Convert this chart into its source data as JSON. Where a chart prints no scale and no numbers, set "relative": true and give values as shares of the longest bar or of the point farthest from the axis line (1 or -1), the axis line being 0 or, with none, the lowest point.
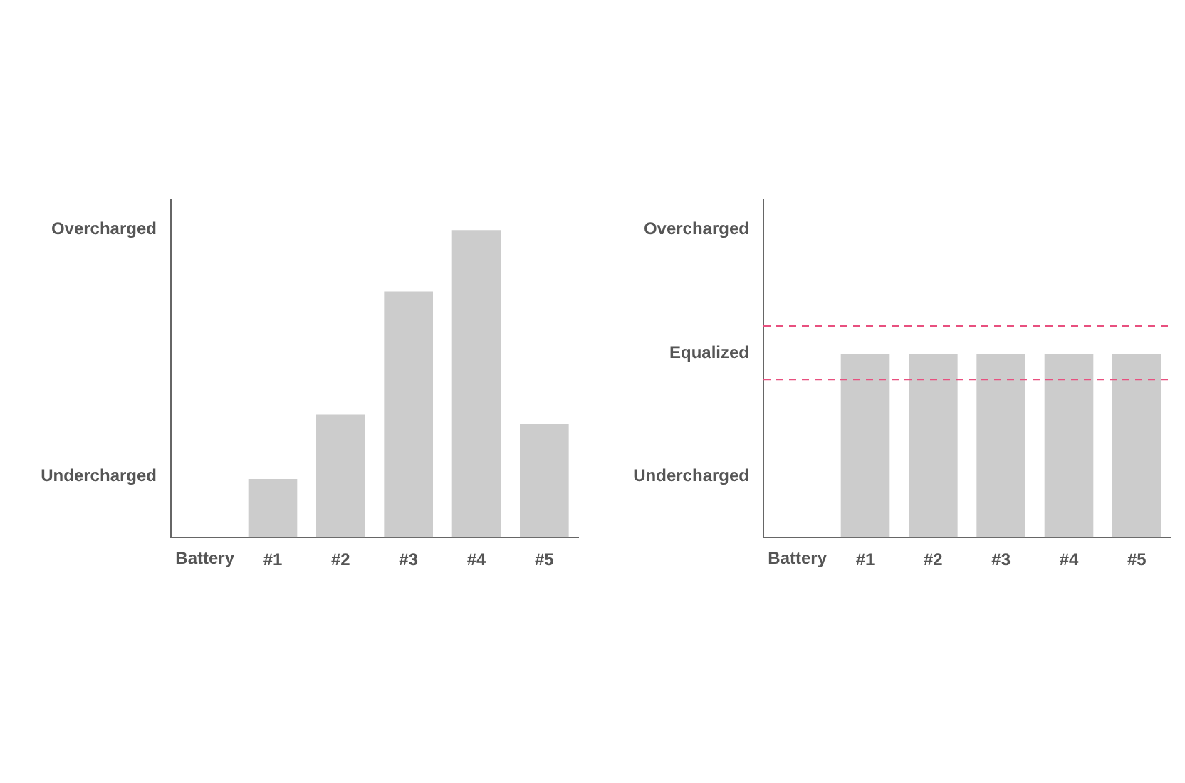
{
  "chart_data": [
    {
      "type": "bar",
      "relative": true,
      "xlabel": "Battery",
      "categories": [
        "#1",
        "#2",
        "#3",
        "#4",
        "#5"
      ],
      "values": [
        0.19,
        0.4,
        0.8,
        1,
        0.37
      ],
      "color": "#cccccc",
      "annotations": [
        "Overcharged",
        "Undercharged"
      ],
      "grid": false,
      "legend": false
    },
    {
      "type": "bar",
      "relative": true,
      "xlabel": "Battery",
      "categories": [
        "#1",
        "#2",
        "#3",
        "#4",
        "#5"
      ],
      "values": [
        1,
        1,
        1,
        1,
        1
      ],
      "color": "#cccccc",
      "annotations": [
        "Overcharged",
        "Equalized",
        "Undercharged"
      ],
      "grid": false,
      "legend": false,
      "ref_lines": [
        {
          "axis": "y",
          "value": 1.15,
          "color": "#e8507f",
          "line_style": "dashed"
        },
        {
          "axis": "y",
          "value": 0.86,
          "color": "#e8507f",
          "line_style": "dashed"
        }
      ]
    }
  ]
}
